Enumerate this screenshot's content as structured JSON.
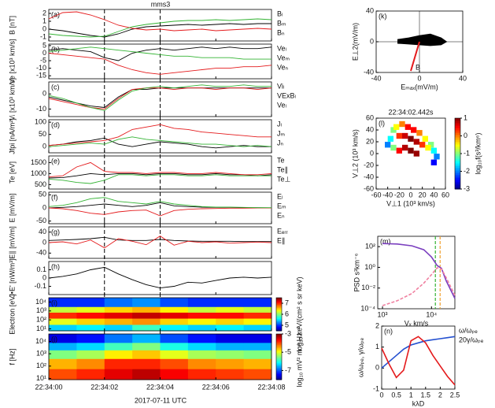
{
  "title": "mms3",
  "time": {
    "x": [
      "22:34:00",
      "22:34:00.5",
      "22:34:01",
      "22:34:01.5",
      "22:34:02",
      "22:34:02.5",
      "22:34:03",
      "22:34:03.5",
      "22:34:04",
      "22:34:04.5",
      "22:34:05",
      "22:34:05.5",
      "22:34:06",
      "22:34:06.5",
      "22:34:07",
      "22:34:07.5",
      "22:34:08"
    ],
    "xlim": [
      "22:34:00",
      "22:34:08"
    ],
    "xticks": [
      "22:34:00",
      "22:34:02",
      "22:34:04",
      "22:34:06",
      "22:34:08"
    ],
    "xlabel": "2017-07-11 UTC"
  },
  "chart_data": [
    {
      "type": "line",
      "label": "(a)",
      "ylabel": "B [nT]",
      "ylim": [
        -1.5,
        2.5
      ],
      "yticks": [
        -1,
        0,
        1,
        2
      ],
      "series": [
        {
          "name": "Bₗ",
          "color": "#000000",
          "values": [
            0,
            -0.2,
            -0.5,
            -0.8,
            -1,
            -0.6,
            0,
            0.3,
            0.4,
            0.5,
            0.6,
            0.5,
            0.6,
            0.7,
            0.6,
            0.7,
            0.7
          ]
        },
        {
          "name": "Bₘ",
          "color": "#e41a1c",
          "values": [
            1.3,
            2.1,
            2.2,
            1.8,
            1.2,
            0.5,
            0.1,
            -0.1,
            0,
            -0.2,
            -0.1,
            0,
            -0.2,
            -0.1,
            0,
            0.1,
            0
          ]
        },
        {
          "name": "Bₙ",
          "color": "#33b333",
          "values": [
            -0.6,
            -0.8,
            -0.9,
            -1,
            -0.9,
            -0.3,
            0.3,
            0.6,
            0.8,
            1,
            1.1,
            1.1,
            1.2,
            1.1,
            1.2,
            1.3,
            1.2
          ]
        }
      ]
    },
    {
      "type": "line",
      "label": "(b)",
      "ylabel": "Ve [x10³ km/s]",
      "ylim": [
        -17,
        6
      ],
      "yticks": [
        -15,
        -10,
        -5,
        0,
        5
      ],
      "series": [
        {
          "name": "Veₗ",
          "color": "#000000",
          "values": [
            2,
            3,
            2,
            1,
            -3,
            -5,
            0,
            2,
            3,
            2,
            3,
            4,
            3,
            4,
            3,
            3,
            4
          ]
        },
        {
          "name": "Veₘ",
          "color": "#e41a1c",
          "values": [
            0,
            -1,
            -2,
            -3,
            -4,
            -8,
            -11,
            -13,
            -14,
            -13,
            -12,
            -11,
            -10,
            -10,
            -9,
            -9,
            -8
          ]
        },
        {
          "name": "Veₙ",
          "color": "#33b333",
          "values": [
            1,
            2,
            3,
            4,
            3,
            2,
            1,
            0,
            -1,
            -2,
            -2,
            -3,
            -3,
            -3,
            -4,
            -4,
            -4
          ]
        }
      ]
    },
    {
      "type": "line",
      "label": "(c)",
      "ylabel": "Vᵢ [x10³ km/s]",
      "ylim": [
        -15,
        8
      ],
      "yticks": [
        -10,
        0
      ],
      "series": [
        {
          "name": "Viₗ",
          "color": "#000000",
          "values": [
            -2,
            -4,
            -6,
            -8,
            -9,
            -2,
            3,
            3,
            4,
            4,
            4,
            4,
            4,
            4,
            4,
            4,
            4
          ]
        },
        {
          "name": "VExBₗ",
          "color": "#e41a1c",
          "values": [
            -3,
            -5,
            -7,
            -9,
            -10,
            -3,
            3,
            4,
            4,
            3,
            4,
            4,
            3,
            4,
            4,
            3,
            4
          ]
        },
        {
          "name": "Veₗ",
          "color": "#33b333",
          "values": [
            -1,
            -3,
            -6,
            -9,
            -11,
            -4,
            2,
            4,
            5,
            4,
            5,
            6,
            5,
            5,
            6,
            5,
            5
          ]
        }
      ]
    },
    {
      "type": "line",
      "label": "(d)",
      "ylabel": "Jfpi [nA/m²]",
      "ylim": [
        -25,
        110
      ],
      "yticks": [
        0,
        50,
        100
      ],
      "series": [
        {
          "name": "Jₗ",
          "color": "#000000",
          "values": [
            5,
            10,
            20,
            25,
            35,
            10,
            0,
            10,
            20,
            15,
            10,
            0,
            -5,
            0,
            5,
            0,
            0
          ]
        },
        {
          "name": "Jₘ",
          "color": "#e41a1c",
          "values": [
            5,
            10,
            15,
            20,
            25,
            40,
            70,
            80,
            90,
            75,
            70,
            60,
            55,
            50,
            45,
            40,
            40
          ]
        },
        {
          "name": "Jₙ",
          "color": "#33b333",
          "values": [
            0,
            5,
            10,
            15,
            10,
            30,
            40,
            30,
            25,
            20,
            15,
            10,
            10,
            5,
            0,
            5,
            0
          ]
        }
      ]
    },
    {
      "type": "line",
      "label": "(e)",
      "ylabel": "Te [eV]",
      "ylim": [
        300,
        1800
      ],
      "yticks": [
        500,
        1000,
        1500
      ],
      "series": [
        {
          "name": "Te",
          "color": "#000000",
          "values": [
            800,
            820,
            900,
            1000,
            950,
            1000,
            1000,
            950,
            1000,
            1000,
            950,
            950,
            1000,
            950,
            950,
            900,
            950
          ]
        },
        {
          "name": "Te∥",
          "color": "#e41a1c",
          "values": [
            850,
            900,
            1300,
            1500,
            1100,
            1050,
            1050,
            1000,
            1050,
            1050,
            1000,
            1000,
            1050,
            1000,
            950,
            950,
            1000
          ]
        },
        {
          "name": "Te⊥",
          "color": "#33b333",
          "values": [
            750,
            700,
            600,
            550,
            700,
            950,
            950,
            900,
            950,
            950,
            900,
            900,
            950,
            900,
            900,
            900,
            900
          ]
        }
      ]
    },
    {
      "type": "line",
      "label": "(f)",
      "ylabel": "E [mV/m]",
      "ylim": [
        -60,
        60
      ],
      "yticks": [
        -50,
        0,
        50
      ],
      "series": [
        {
          "name": "Eₗ",
          "color": "#000000",
          "values": [
            0,
            2,
            5,
            10,
            15,
            10,
            5,
            10,
            20,
            8,
            5,
            3,
            2,
            2,
            1,
            1,
            0
          ]
        },
        {
          "name": "Eₘ",
          "color": "#e41a1c",
          "values": [
            0,
            -3,
            -10,
            -20,
            -25,
            -15,
            -10,
            -8,
            -30,
            -10,
            -5,
            -3,
            -2,
            -1,
            -1,
            0,
            0
          ]
        },
        {
          "name": "Eₙ",
          "color": "#33b333",
          "values": [
            5,
            10,
            20,
            35,
            40,
            25,
            20,
            15,
            25,
            15,
            10,
            5,
            3,
            3,
            2,
            1,
            1
          ]
        }
      ]
    },
    {
      "type": "line",
      "label": "(g)",
      "ylabel": "E∥ [mV/m]",
      "ylim": [
        -60,
        60
      ],
      "yticks": [
        -40,
        0,
        40
      ],
      "series": [
        {
          "name": "Eₑᵣᵣ",
          "color": "#000000",
          "values": [
            8,
            10,
            12,
            15,
            20,
            10,
            8,
            8,
            12,
            8,
            6,
            5,
            5,
            5,
            4,
            4,
            4
          ]
        },
        {
          "name": "E∥",
          "color": "#e41a1c",
          "values": [
            0,
            3,
            -5,
            10,
            -20,
            15,
            5,
            -8,
            25,
            -10,
            5,
            0,
            3,
            -2,
            0,
            2,
            0
          ]
        }
      ]
    },
    {
      "type": "line",
      "label": "(h)",
      "ylabel": "J•E' [nW/m³]",
      "ylim": [
        -0.2,
        0.2
      ],
      "yticks": [
        -0.1,
        0,
        0.1
      ],
      "series": [
        {
          "color": "#000000",
          "values": [
            0,
            0.02,
            0.05,
            0.1,
            0.13,
            0.05,
            -0.02,
            -0.08,
            -0.12,
            -0.1,
            -0.05,
            -0.06,
            -0.03,
            0,
            0.01,
            0,
            0.01
          ]
        }
      ]
    },
    {
      "type": "heatmap",
      "label": "(i)",
      "ylabel": "Electron [eV]",
      "log_y": true,
      "ylim": [
        6,
        30000
      ],
      "yticks": [
        {
          "value": 10,
          "label": "10¹"
        },
        {
          "value": 100,
          "label": "10²"
        },
        {
          "value": 1000,
          "label": "10³"
        },
        {
          "value": 10000,
          "label": "10⁴"
        }
      ],
      "y_edges": [
        6,
        30,
        150,
        700,
        3000,
        30000
      ],
      "zlim": [
        4.5,
        7.5
      ],
      "zticks": [
        5,
        6,
        7
      ],
      "zlabel": "log₁₀ keV/(cm² s sr keV)",
      "z": [
        [
          5.5,
          5.6,
          5.5,
          5.8,
          5.6,
          5.5,
          5.6,
          5.5
        ],
        [
          6.3,
          6.5,
          6.6,
          6.7,
          6.5,
          6.4,
          6.5,
          6.4
        ],
        [
          7,
          7.1,
          7.2,
          7.3,
          7.2,
          7.1,
          7.1,
          7
        ],
        [
          6.2,
          6.3,
          6.5,
          6.6,
          6.4,
          6.2,
          6.3,
          6.2
        ],
        [
          5,
          5,
          5.2,
          5.3,
          5.1,
          5,
          5,
          5
        ]
      ]
    },
    {
      "type": "heatmap",
      "label": "(j)",
      "ylabel": "f [Hz]",
      "log_y": true,
      "ylim": [
        8,
        40000
      ],
      "yticks": [
        {
          "value": 10,
          "label": "10¹"
        },
        {
          "value": 100,
          "label": "10²"
        },
        {
          "value": 1000,
          "label": "10³"
        },
        {
          "value": 10000,
          "label": "10⁴"
        }
      ],
      "y_edges": [
        8,
        60,
        400,
        2000,
        8000,
        40000
      ],
      "zlim": [
        -8,
        -3
      ],
      "zticks": [
        -7,
        -5,
        -3
      ],
      "zlabel": "log₁₀ mV² m⁻² Hz⁻¹",
      "z": [
        [
          -4,
          -3.8,
          -3.5,
          -3.3,
          -3.6,
          -3.8,
          -3.9,
          -4
        ],
        [
          -4.5,
          -4.3,
          -3.8,
          -3.8,
          -4,
          -4.3,
          -4.4,
          -4.5
        ],
        [
          -5.5,
          -5.3,
          -4.8,
          -4.6,
          -5,
          -5.3,
          -5.4,
          -5.5
        ],
        [
          -6.5,
          -6.3,
          -5.8,
          -5.5,
          -6,
          -6.3,
          -6.5,
          -6.5
        ],
        [
          -7.5,
          -7.3,
          -6.8,
          -6.5,
          -7,
          -7.3,
          -7.5,
          -7.5
        ]
      ]
    },
    {
      "type": "hodogram",
      "label": "(k)",
      "xlabel": "Eₘₐₓ(mV/m)",
      "ylabel": "E⊥2(mV/m)",
      "xlim": [
        -40,
        40
      ],
      "ylim": [
        -40,
        40
      ],
      "xticks": [
        -40,
        0,
        40
      ],
      "yticks": [
        -40,
        0,
        40
      ],
      "x": [
        -20,
        -10,
        0,
        10,
        20,
        25,
        20,
        10,
        0,
        -10,
        -20
      ],
      "y": [
        3,
        5,
        8,
        10,
        5,
        0,
        -4,
        -5,
        -4,
        -3,
        -2
      ],
      "b_vector": {
        "x": -8,
        "y": -38,
        "label": "B",
        "color": "#e41a1c"
      }
    },
    {
      "type": "distribution",
      "label": "(l)",
      "title": "22:34:02.442s",
      "xlabel": "V⊥1 (10³ km/s)",
      "ylabel": "V⊥2 (10³ km/s)",
      "xlim": [
        -60,
        60
      ],
      "ylim": [
        -60,
        60
      ],
      "xticks": [
        -60,
        -40,
        -20,
        0,
        20,
        40,
        60
      ],
      "yticks": [
        -60,
        -40,
        -20,
        0,
        20,
        40,
        60
      ],
      "zlim": [
        -3,
        1
      ],
      "zticks": [
        1,
        0,
        -1,
        -2,
        -3
      ],
      "zlabel": "log₁₀f(s³/km⁶)",
      "x": [
        -30,
        -35,
        -25,
        -15,
        -5,
        5,
        15,
        25,
        35,
        40,
        -40,
        -30,
        -20,
        -10,
        0,
        10,
        20,
        30,
        -20,
        -10,
        0,
        10,
        45,
        40
      ],
      "y": [
        40,
        25,
        45,
        50,
        45,
        40,
        35,
        25,
        15,
        5,
        15,
        10,
        30,
        30,
        25,
        20,
        15,
        10,
        5,
        10,
        5,
        0,
        -5,
        -15
      ],
      "z": [
        -1,
        -1.5,
        -0.5,
        0,
        0.5,
        0.5,
        0,
        -0.5,
        -1,
        -1.5,
        -2,
        -1,
        0.3,
        0.7,
        1,
        0.8,
        0.3,
        -0.5,
        0.5,
        0.8,
        1,
        0.9,
        -2,
        -2.5
      ]
    },
    {
      "type": "line",
      "label": "(m)",
      "xlabel": "Vₓ km/s",
      "ylabel": "PSD s³km⁻⁶",
      "log_x": true,
      "log_y": true,
      "xlim": [
        800,
        30000
      ],
      "ylim": [
        0.0001,
        1000
      ],
      "xticks": [
        {
          "value": 1000,
          "label": "10³"
        },
        {
          "value": 10000,
          "label": "10⁴"
        }
      ],
      "yticks": [
        {
          "value": 0.0001,
          "label": "10⁻⁴"
        },
        {
          "value": 0.01,
          "label": "10⁻²"
        },
        {
          "value": 1,
          "label": "10⁰"
        },
        {
          "value": 100,
          "label": "10²"
        }
      ],
      "x": [
        1000,
        2000,
        4000,
        7000,
        10000,
        13000,
        16000,
        20000,
        30000
      ],
      "vlines": [
        {
          "x": 12000,
          "color": "#33b333"
        },
        {
          "x": 15000,
          "color": "#f0a030"
        }
      ],
      "series": [
        {
          "color": "#7b3fbf",
          "values": [
            200,
            180,
            120,
            50,
            10,
            1.5,
            0.8,
            0.05,
            0.001
          ]
        },
        {
          "color": "#f080a0",
          "dashed": true,
          "values": [
            0.0002,
            0.0006,
            0.003,
            0.03,
            0.2,
            0.9,
            0.7,
            0.1,
            0.002
          ]
        }
      ]
    },
    {
      "type": "line",
      "label": "(n)",
      "xlabel": "kλD",
      "ylabel": "ω/ωₚₑ, γ/ωₚₑ",
      "xlim": [
        0,
        2.5
      ],
      "ylim": [
        -1,
        2
      ],
      "xticks": [
        0,
        0.5,
        1,
        1.5,
        2,
        2.5
      ],
      "yticks": [
        -1,
        0,
        1,
        2
      ],
      "x": [
        0,
        0.25,
        0.5,
        0.75,
        1,
        1.25,
        1.5,
        1.75,
        2,
        2.25,
        2.5
      ],
      "series": [
        {
          "name": "ω/ωₚₑ",
          "color": "#2450d0",
          "values": [
            0,
            0.3,
            0.6,
            0.9,
            1.1,
            1.2,
            1.3,
            1.35,
            1.4,
            1.45,
            1.5
          ]
        },
        {
          "name": "20γ/ωₚₑ",
          "color": "#e41a1c",
          "values": [
            0.95,
            0.2,
            -0.45,
            -0.1,
            1.3,
            1.5,
            1.2,
            0.6,
            0.1,
            -0.4,
            -0.8
          ]
        }
      ]
    }
  ]
}
